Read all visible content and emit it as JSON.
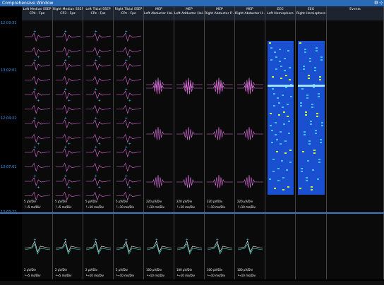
{
  "window": {
    "title": "Comprehensive Window"
  },
  "icons": {
    "settings": "gear-icon",
    "pin": "pin-icon"
  },
  "time_labels": [
    "12:03:31",
    "13:02:01",
    "12:04:21",
    "13:07:01",
    "12:03:21"
  ],
  "columns": [
    {
      "title": "Left Median SSEP",
      "subtitle": "CP4 - Fpz",
      "scale_v": "5 µV/Div",
      "scale_h": "5 ms/Div",
      "scale_v2": "2 µV/Div",
      "scale_h2": "5 ms/Div"
    },
    {
      "title": "Right Median SSEP",
      "subtitle": "CP3 - Fpz",
      "scale_v": "5 µV/Div",
      "scale_h": "5 ms/Div",
      "scale_v2": "2 µV/Div",
      "scale_h2": "5 ms/Div"
    },
    {
      "title": "Left Tibial SSEP",
      "subtitle": "CPz - Fpz",
      "scale_v": "5 µV/Div",
      "scale_h": "10 ms/Div",
      "scale_v2": "2 µV/Div",
      "scale_h2": "10 ms/Div"
    },
    {
      "title": "Right Tibial SSEP",
      "subtitle": "CPz - Fpz",
      "scale_v": "5 µV/Div",
      "scale_h": "10 ms/Div",
      "scale_v2": "2 µV/Div",
      "scale_h2": "10 ms/Div"
    },
    {
      "title": "MEP",
      "subtitle": "Left Abductor Hal...",
      "scale_v": "220 µV/Div",
      "scale_h": "10 ms/Div",
      "scale_v2": "100 µV/Div",
      "scale_h2": "10 ms/Div"
    },
    {
      "title": "MEP",
      "subtitle": "Left Adductor Hal...",
      "scale_v": "220 µV/Div",
      "scale_h": "10 ms/Div",
      "scale_v2": "100 µV/Div",
      "scale_h2": "10 ms/Div"
    },
    {
      "title": "MEP",
      "subtitle": "Right Abductor P...",
      "scale_v": "220 µV/Div",
      "scale_h": "10 ms/Div",
      "scale_v2": "100 µV/Div",
      "scale_h2": "10 ms/Div"
    },
    {
      "title": "MEP",
      "subtitle": "Right Abductor H...",
      "scale_v": "220 µV/Div",
      "scale_h": "10 ms/Div",
      "scale_v2": "100 µV/Div",
      "scale_h2": "10 ms/Div"
    },
    {
      "title": "EEG",
      "subtitle": "Left Hemisphere"
    },
    {
      "title": "EEG",
      "subtitle": "Right Hemisphere"
    },
    {
      "title": "Events",
      "subtitle": ""
    }
  ],
  "colors": {
    "ssep_trace": "#e070e0",
    "marker": "#40d0ff",
    "baseline_trace": "#ffffff",
    "spectrogram": "#1a4fd0",
    "accent": "#2a6bb8"
  }
}
